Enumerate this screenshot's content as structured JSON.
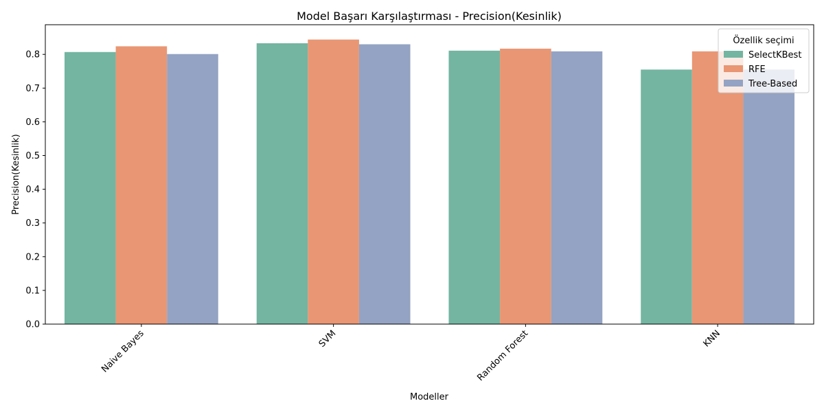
{
  "chart_data": {
    "type": "bar",
    "title": "Model Başarı Karşılaştırması - Precision(Kesinlik)",
    "xlabel": "Modeller",
    "ylabel": "Precision(Kesinlik)",
    "categories": [
      "Naive Bayes",
      "SVM",
      "Random Forest",
      "KNN"
    ],
    "series": [
      {
        "name": "SelectKBest",
        "values": [
          0.807,
          0.833,
          0.811,
          0.755
        ],
        "color": "#73b5a1"
      },
      {
        "name": "RFE",
        "values": [
          0.824,
          0.844,
          0.817,
          0.809
        ],
        "color": "#e99674"
      },
      {
        "name": "Tree-Based",
        "values": [
          0.801,
          0.83,
          0.809,
          0.755
        ],
        "color": "#94a3c3"
      }
    ],
    "ylim": [
      0,
      0.888
    ],
    "yticks": [
      "0.0",
      "0.1",
      "0.2",
      "0.3",
      "0.4",
      "0.5",
      "0.6",
      "0.7",
      "0.8"
    ],
    "legend": {
      "title": "Özellik seçimi",
      "placement": "top-right"
    },
    "grid": false
  }
}
